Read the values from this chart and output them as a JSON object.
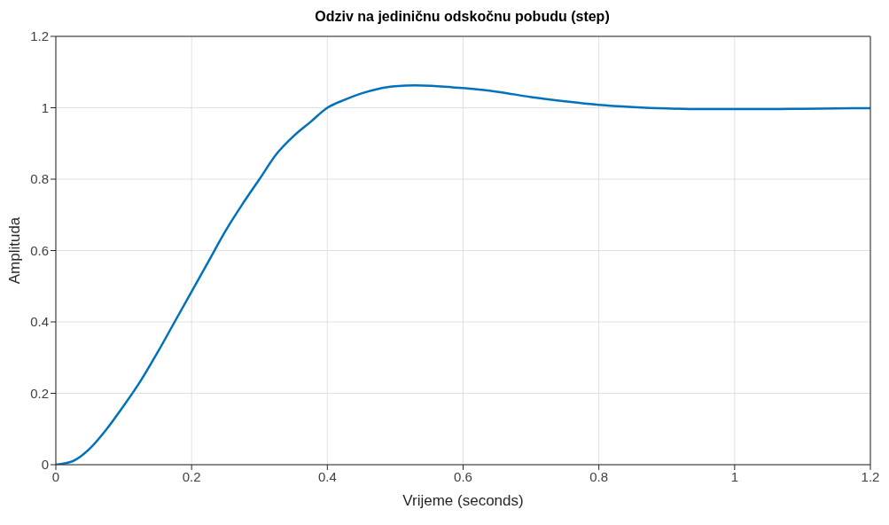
{
  "chart_data": {
    "type": "line",
    "title": "Odziv na jediničnu odskočnu pobudu (step)",
    "xlabel": "Vrijeme (seconds)",
    "ylabel": "Amplituda",
    "x": [
      0,
      0.025,
      0.05,
      0.075,
      0.1,
      0.125,
      0.15,
      0.175,
      0.2,
      0.225,
      0.25,
      0.275,
      0.3,
      0.325,
      0.35,
      0.375,
      0.4,
      0.425,
      0.45,
      0.475,
      0.5,
      0.53,
      0.6,
      0.65,
      0.7,
      0.75,
      0.8,
      0.85,
      0.9,
      0.95,
      1,
      1.05,
      1.1,
      1.15,
      1.2
    ],
    "series": [
      {
        "color": "#0072bd",
        "values": [
          0,
          0.01,
          0.045,
          0.1,
          0.165,
          0.235,
          0.315,
          0.4,
          0.485,
          0.57,
          0.655,
          0.73,
          0.8,
          0.87,
          0.92,
          0.96,
          1.0,
          1.022,
          1.04,
          1.053,
          1.06,
          1.063,
          1.055,
          1.045,
          1.03,
          1.018,
          1.008,
          1.002,
          0.998,
          0.996,
          0.996,
          0.996,
          0.997,
          0.998,
          0.999
        ]
      }
    ],
    "xlim": [
      0,
      1.2
    ],
    "ylim": [
      0,
      1.2
    ],
    "xticks": [
      0,
      0.2,
      0.4,
      0.6,
      0.8,
      1,
      1.2
    ],
    "yticks": [
      0,
      0.2,
      0.4,
      0.6,
      0.8,
      1,
      1.2
    ],
    "grid": true,
    "marker": "none",
    "line_style": "solid"
  }
}
